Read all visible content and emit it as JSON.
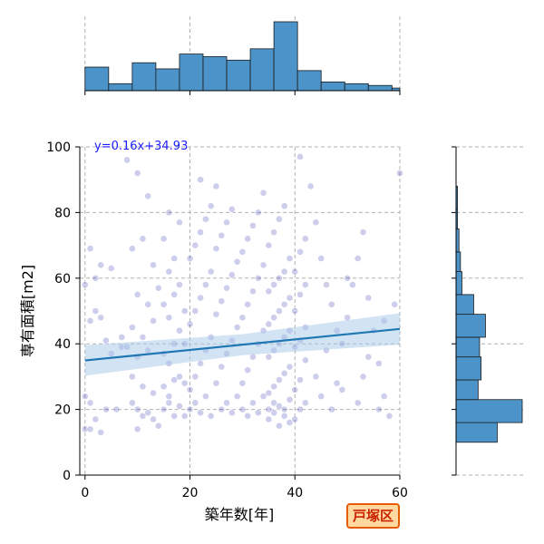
{
  "badge": {
    "label": "戸塚区",
    "text_color": "#cc2200",
    "border_color": "#e65c00",
    "bg_color": "#ffd9a0"
  },
  "chart_data": {
    "type": "scatter",
    "xlabel": "築年数[年]",
    "ylabel": "専有面積[m2]",
    "xlim": [
      -1,
      60
    ],
    "ylim": [
      0,
      100
    ],
    "x_ticks": [
      0,
      20,
      40,
      60
    ],
    "y_ticks": [
      0,
      20,
      40,
      60,
      80,
      100
    ],
    "grid": true,
    "point_color": "#1a1aaa",
    "regression": {
      "equation": "y=0.16x+34.93",
      "slope": 0.16,
      "intercept": 34.93,
      "color": "#1f77b4",
      "ci_color": "#a6c8e8"
    },
    "marginal_x_hist": {
      "bin_edges": [
        0,
        4.5,
        9,
        13.5,
        18,
        22.5,
        27,
        31.5,
        36,
        40.5,
        45,
        49.5,
        54,
        58.5,
        60
      ],
      "counts": [
        27,
        8,
        32,
        25,
        42,
        39,
        35,
        48,
        79,
        23,
        10,
        8,
        6,
        3
      ],
      "color": "#4c93c9"
    },
    "marginal_y_hist": {
      "bin_edges": [
        10,
        16,
        23,
        29,
        36,
        42,
        49,
        55,
        62,
        68,
        75,
        81,
        88,
        94,
        100
      ],
      "counts": [
        28,
        45,
        15,
        17,
        16,
        20,
        12,
        4,
        3,
        2,
        1,
        1,
        0,
        0
      ],
      "color": "#4c93c9"
    },
    "points": [
      [
        0,
        14
      ],
      [
        1,
        14
      ],
      [
        3,
        13
      ],
      [
        2,
        17
      ],
      [
        0,
        24
      ],
      [
        1,
        22
      ],
      [
        4,
        20
      ],
      [
        6,
        20
      ],
      [
        0,
        58
      ],
      [
        1,
        69
      ],
      [
        2,
        60
      ],
      [
        3,
        64
      ],
      [
        5,
        63
      ],
      [
        2,
        50
      ],
      [
        4,
        41
      ],
      [
        1,
        47
      ],
      [
        5,
        37
      ],
      [
        7,
        39
      ],
      [
        7,
        42
      ],
      [
        3,
        48
      ],
      [
        8,
        96
      ],
      [
        10,
        92
      ],
      [
        12,
        85
      ],
      [
        9,
        69
      ],
      [
        11,
        72
      ],
      [
        13,
        64
      ],
      [
        10,
        55
      ],
      [
        12,
        52
      ],
      [
        14,
        57
      ],
      [
        9,
        45
      ],
      [
        11,
        42
      ],
      [
        13,
        47
      ],
      [
        8,
        39
      ],
      [
        10,
        36
      ],
      [
        12,
        38
      ],
      [
        9,
        30
      ],
      [
        11,
        27
      ],
      [
        13,
        25
      ],
      [
        9,
        22
      ],
      [
        10,
        20
      ],
      [
        11,
        18
      ],
      [
        12,
        19
      ],
      [
        13,
        17
      ],
      [
        14,
        15
      ],
      [
        10,
        14
      ],
      [
        15,
        20
      ],
      [
        16,
        22
      ],
      [
        17,
        18
      ],
      [
        18,
        21
      ],
      [
        16,
        24
      ],
      [
        15,
        27
      ],
      [
        17,
        29
      ],
      [
        18,
        30
      ],
      [
        16,
        34
      ],
      [
        15,
        37
      ],
      [
        17,
        40
      ],
      [
        18,
        44
      ],
      [
        16,
        48
      ],
      [
        15,
        52
      ],
      [
        17,
        55
      ],
      [
        18,
        58
      ],
      [
        16,
        62
      ],
      [
        17,
        66
      ],
      [
        15,
        72
      ],
      [
        18,
        77
      ],
      [
        16,
        80
      ],
      [
        19,
        40
      ],
      [
        19,
        50
      ],
      [
        19,
        28
      ],
      [
        19,
        18
      ],
      [
        20,
        20
      ],
      [
        21,
        22
      ],
      [
        22,
        19
      ],
      [
        23,
        24
      ],
      [
        24,
        18
      ],
      [
        20,
        26
      ],
      [
        21,
        30
      ],
      [
        22,
        34
      ],
      [
        23,
        38
      ],
      [
        24,
        42
      ],
      [
        20,
        46
      ],
      [
        21,
        50
      ],
      [
        22,
        54
      ],
      [
        23,
        58
      ],
      [
        24,
        62
      ],
      [
        20,
        66
      ],
      [
        21,
        70
      ],
      [
        22,
        74
      ],
      [
        23,
        78
      ],
      [
        24,
        82
      ],
      [
        22,
        90
      ],
      [
        25,
        88
      ],
      [
        26,
        20
      ],
      [
        27,
        22
      ],
      [
        28,
        19
      ],
      [
        29,
        24
      ],
      [
        25,
        28
      ],
      [
        26,
        33
      ],
      [
        27,
        37
      ],
      [
        28,
        41
      ],
      [
        29,
        45
      ],
      [
        25,
        49
      ],
      [
        26,
        53
      ],
      [
        27,
        57
      ],
      [
        28,
        61
      ],
      [
        29,
        65
      ],
      [
        25,
        69
      ],
      [
        26,
        73
      ],
      [
        27,
        77
      ],
      [
        28,
        81
      ],
      [
        30,
        20
      ],
      [
        31,
        18
      ],
      [
        32,
        22
      ],
      [
        33,
        19
      ],
      [
        34,
        24
      ],
      [
        30,
        28
      ],
      [
        31,
        32
      ],
      [
        32,
        36
      ],
      [
        33,
        40
      ],
      [
        34,
        44
      ],
      [
        30,
        48
      ],
      [
        31,
        52
      ],
      [
        32,
        56
      ],
      [
        33,
        60
      ],
      [
        34,
        64
      ],
      [
        30,
        68
      ],
      [
        31,
        72
      ],
      [
        32,
        76
      ],
      [
        33,
        80
      ],
      [
        34,
        86
      ],
      [
        35,
        17
      ],
      [
        36,
        19
      ],
      [
        37,
        15
      ],
      [
        38,
        18
      ],
      [
        39,
        16
      ],
      [
        35,
        20
      ],
      [
        36,
        22
      ],
      [
        37,
        21
      ],
      [
        38,
        20
      ],
      [
        39,
        23
      ],
      [
        35,
        25
      ],
      [
        36,
        27
      ],
      [
        37,
        29
      ],
      [
        38,
        31
      ],
      [
        39,
        33
      ],
      [
        35,
        36
      ],
      [
        36,
        38
      ],
      [
        37,
        40
      ],
      [
        38,
        42
      ],
      [
        39,
        44
      ],
      [
        35,
        46
      ],
      [
        36,
        48
      ],
      [
        37,
        50
      ],
      [
        38,
        52
      ],
      [
        39,
        54
      ],
      [
        35,
        56
      ],
      [
        36,
        58
      ],
      [
        37,
        60
      ],
      [
        38,
        62
      ],
      [
        39,
        66
      ],
      [
        35,
        70
      ],
      [
        36,
        74
      ],
      [
        37,
        78
      ],
      [
        38,
        82
      ],
      [
        40,
        17
      ],
      [
        41,
        20
      ],
      [
        42,
        22
      ],
      [
        40,
        26
      ],
      [
        41,
        29
      ],
      [
        42,
        35
      ],
      [
        40,
        39
      ],
      [
        41,
        41
      ],
      [
        42,
        45
      ],
      [
        40,
        50
      ],
      [
        41,
        55
      ],
      [
        42,
        58
      ],
      [
        40,
        62
      ],
      [
        41,
        68
      ],
      [
        42,
        72
      ],
      [
        41,
        97
      ],
      [
        43,
        88
      ],
      [
        44,
        77
      ],
      [
        45,
        66
      ],
      [
        46,
        58
      ],
      [
        47,
        52
      ],
      [
        48,
        44
      ],
      [
        46,
        38
      ],
      [
        44,
        30
      ],
      [
        45,
        24
      ],
      [
        47,
        20
      ],
      [
        48,
        28
      ],
      [
        49,
        40
      ],
      [
        50,
        48
      ],
      [
        51,
        58
      ],
      [
        52,
        66
      ],
      [
        53,
        74
      ],
      [
        54,
        54
      ],
      [
        55,
        44
      ],
      [
        56,
        34
      ],
      [
        57,
        24
      ],
      [
        58,
        18
      ],
      [
        59,
        52
      ],
      [
        60,
        92
      ],
      [
        56,
        20
      ],
      [
        53,
        30
      ],
      [
        50,
        60
      ],
      [
        49,
        26
      ],
      [
        54,
        36
      ],
      [
        57,
        47
      ],
      [
        52,
        22
      ]
    ]
  }
}
